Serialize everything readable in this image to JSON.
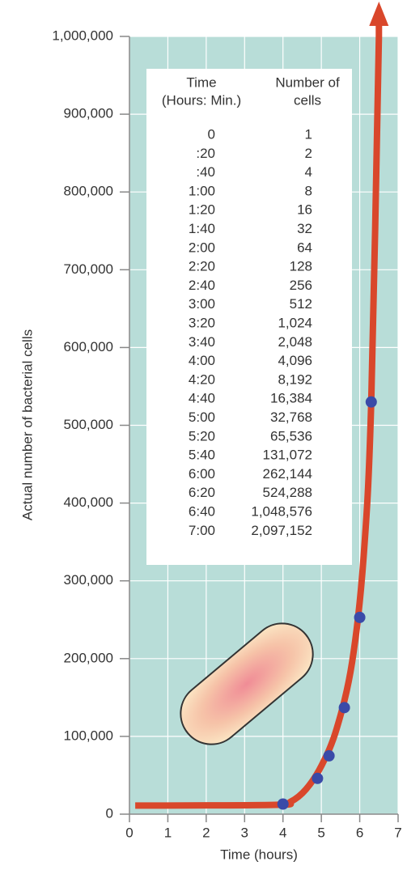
{
  "chart_data": {
    "type": "line",
    "xlabel": "Time (hours)",
    "ylabel": "Actual number of bacterial cells",
    "xlim": [
      0,
      7
    ],
    "xticks": [
      0,
      1,
      2,
      3,
      4,
      5,
      6,
      7
    ],
    "ylim": [
      0,
      1000000
    ],
    "yticks": [
      0,
      {
        "value": 100000,
        "label": "100,000"
      },
      {
        "value": 200000,
        "label": "200,000"
      },
      {
        "value": 300000,
        "label": "300,000"
      },
      {
        "value": 400000,
        "label": "400,000"
      },
      {
        "value": 500000,
        "label": "500,000"
      },
      {
        "value": 600000,
        "label": "600,000"
      },
      {
        "value": 700000,
        "label": "700,000"
      },
      {
        "value": 800000,
        "label": "800,000"
      },
      {
        "value": 900000,
        "label": "900,000"
      },
      {
        "value": 1000000,
        "label": "1,000,000"
      }
    ],
    "grid": true,
    "line": {
      "color": "#d9472b",
      "x": [
        0.15,
        3.8,
        4.2,
        4.6,
        5,
        5.4,
        5.8,
        6.1,
        6.3,
        6.5
      ],
      "values": [
        11000,
        12000,
        16000,
        32000,
        62000,
        110000,
        195000,
        330000,
        530000,
        1000000
      ]
    },
    "points": {
      "color": "#3a4aa8",
      "x": [
        4,
        4.9,
        5.2,
        5.6,
        6.0,
        6.3
      ],
      "values": [
        13000,
        46000,
        75000,
        137000,
        253000,
        530000
      ]
    }
  },
  "table": {
    "headers": [
      [
        "Time",
        "(Hours: Min.)"
      ],
      [
        "Number of",
        "cells"
      ]
    ],
    "rows": [
      [
        "0",
        "1"
      ],
      [
        ":20",
        "2"
      ],
      [
        ":40",
        "4"
      ],
      [
        "1:00",
        "8"
      ],
      [
        "1:20",
        "16"
      ],
      [
        "1:40",
        "32"
      ],
      [
        "2:00",
        "64"
      ],
      [
        "2:20",
        "128"
      ],
      [
        "2:40",
        "256"
      ],
      [
        "3:00",
        "512"
      ],
      [
        "3:20",
        "1,024"
      ],
      [
        "3:40",
        "2,048"
      ],
      [
        "4:00",
        "4,096"
      ],
      [
        "4:20",
        "8,192"
      ],
      [
        "4:40",
        "16,384"
      ],
      [
        "5:00",
        "32,768"
      ],
      [
        "5:20",
        "65,536"
      ],
      [
        "5:40",
        "131,072"
      ],
      [
        "6:00",
        "262,144"
      ],
      [
        "6:20",
        "524,288"
      ],
      [
        "6:40",
        "1,048,576"
      ],
      [
        "7:00",
        "2,097,152"
      ]
    ]
  }
}
